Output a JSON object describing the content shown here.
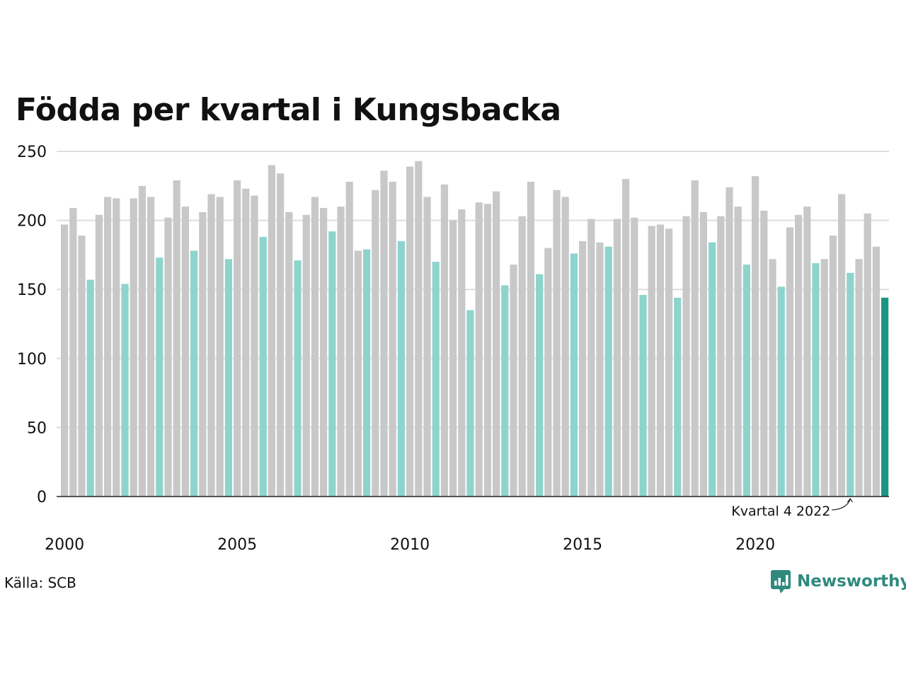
{
  "colors": {
    "bar_default": "#c8c8c8",
    "bar_q4": "#8dd4cc",
    "bar_latest": "#1b9583",
    "grid": "#dddddd",
    "axis": "#222222",
    "brand": "#2f8a7d"
  },
  "footer": {
    "source": "Källa: SCB",
    "brand_name": "Newsworthy",
    "brand_icon": "newsworthy-logo-icon"
  },
  "chart_data": {
    "type": "bar",
    "title": "Födda per kvartal i Kungsbacka",
    "xlabel": "",
    "ylabel": "",
    "ylim": [
      0,
      250
    ],
    "yticks": [
      0,
      50,
      100,
      150,
      200,
      250
    ],
    "grid": true,
    "x_tick_labels": [
      "2000",
      "2005",
      "2010",
      "2015",
      "2020"
    ],
    "annotation": {
      "text": "Kvartal 4 2022",
      "target_index": 91
    },
    "highlight": "Kvartal 4 (turkos); senaste kvartalet mörkare",
    "categories": [
      "2000 K1",
      "2000 K2",
      "2000 K3",
      "2000 K4",
      "2001 K1",
      "2001 K2",
      "2001 K3",
      "2001 K4",
      "2002 K1",
      "2002 K2",
      "2002 K3",
      "2002 K4",
      "2003 K1",
      "2003 K2",
      "2003 K3",
      "2003 K4",
      "2004 K1",
      "2004 K2",
      "2004 K3",
      "2004 K4",
      "2005 K1",
      "2005 K2",
      "2005 K3",
      "2005 K4",
      "2006 K1",
      "2006 K2",
      "2006 K3",
      "2006 K4",
      "2007 K1",
      "2007 K2",
      "2007 K3",
      "2007 K4",
      "2008 K1",
      "2008 K2",
      "2008 K3",
      "2008 K4",
      "2009 K1",
      "2009 K2",
      "2009 K3",
      "2009 K4",
      "2010 K1",
      "2010 K2",
      "2010 K3",
      "2010 K4",
      "2011 K1",
      "2011 K2",
      "2011 K3",
      "2011 K4",
      "2012 K1",
      "2012 K2",
      "2012 K3",
      "2012 K4",
      "2013 K1",
      "2013 K2",
      "2013 K3",
      "2013 K4",
      "2014 K1",
      "2014 K2",
      "2014 K3",
      "2014 K4",
      "2015 K1",
      "2015 K2",
      "2015 K3",
      "2015 K4",
      "2016 K1",
      "2016 K2",
      "2016 K3",
      "2016 K4",
      "2017 K1",
      "2017 K2",
      "2017 K3",
      "2017 K4",
      "2018 K1",
      "2018 K2",
      "2018 K3",
      "2018 K4",
      "2019 K1",
      "2019 K2",
      "2019 K3",
      "2019 K4",
      "2020 K1",
      "2020 K2",
      "2020 K3",
      "2020 K4",
      "2021 K1",
      "2021 K2",
      "2021 K3",
      "2021 K4",
      "2022 K1",
      "2022 K2",
      "2022 K3",
      "2022 K4",
      "2023 K1",
      "2023 K2",
      "2023 K3",
      "2023 K4"
    ],
    "values": [
      197,
      209,
      189,
      157,
      204,
      217,
      216,
      154,
      216,
      225,
      217,
      173,
      202,
      229,
      210,
      178,
      206,
      219,
      217,
      172,
      229,
      223,
      218,
      188,
      240,
      234,
      206,
      171,
      204,
      217,
      209,
      192,
      210,
      228,
      178,
      179,
      222,
      236,
      228,
      185,
      239,
      243,
      217,
      170,
      226,
      200,
      208,
      135,
      213,
      212,
      221,
      153,
      168,
      203,
      228,
      161,
      180,
      222,
      217,
      176,
      185,
      201,
      184,
      181,
      201,
      230,
      202,
      146,
      196,
      197,
      194,
      144,
      203,
      229,
      206,
      184,
      203,
      224,
      210,
      168,
      232,
      207,
      172,
      152,
      195,
      204,
      210,
      169,
      172,
      189,
      219,
      162,
      172,
      205,
      181,
      144
    ]
  }
}
